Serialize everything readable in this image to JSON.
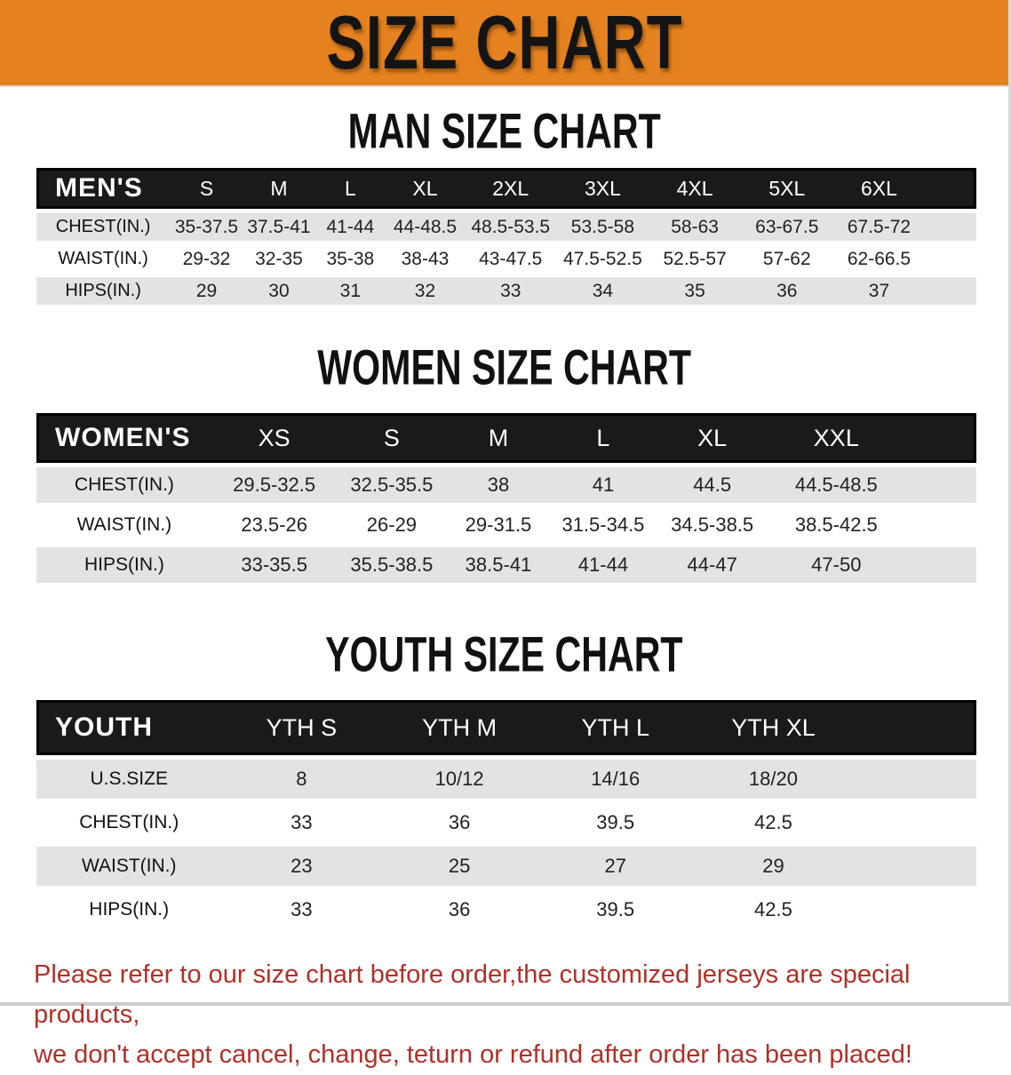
{
  "banner": {
    "title": "SIZE CHART",
    "bg_color": "#e5821f",
    "text_color": "#141414"
  },
  "sections": [
    {
      "id": "men",
      "title": "MAN SIZE CHART",
      "header_label": "MEN'S",
      "columns": [
        "S",
        "M",
        "L",
        "XL",
        "2XL",
        "3XL",
        "4XL",
        "5XL",
        "6XL"
      ],
      "rows": [
        {
          "label": "CHEST(IN.)",
          "values": [
            "35-37.5",
            "37.5-41",
            "41-44",
            "44-48.5",
            "48.5-53.5",
            "53.5-58",
            "58-63",
            "63-67.5",
            "67.5-72"
          ]
        },
        {
          "label": "WAIST(IN.)",
          "values": [
            "29-32",
            "32-35",
            "35-38",
            "38-43",
            "43-47.5",
            "47.5-52.5",
            "52.5-57",
            "57-62",
            "62-66.5"
          ]
        },
        {
          "label": "HIPS(IN.)",
          "values": [
            "29",
            "30",
            "31",
            "32",
            "33",
            "34",
            "35",
            "36",
            "37"
          ]
        }
      ]
    },
    {
      "id": "women",
      "title": "WOMEN SIZE CHART",
      "header_label": "WOMEN'S",
      "columns": [
        "XS",
        "S",
        "M",
        "L",
        "XL",
        "XXL"
      ],
      "rows": [
        {
          "label": "CHEST(IN.)",
          "values": [
            "29.5-32.5",
            "32.5-35.5",
            "38",
            "41",
            "44.5",
            "44.5-48.5"
          ]
        },
        {
          "label": "WAIST(IN.)",
          "values": [
            "23.5-26",
            "26-29",
            "29-31.5",
            "31.5-34.5",
            "34.5-38.5",
            "38.5-42.5"
          ]
        },
        {
          "label": "HIPS(IN.)",
          "values": [
            "33-35.5",
            "35.5-38.5",
            "38.5-41",
            "41-44",
            "44-47",
            "47-50"
          ]
        }
      ]
    },
    {
      "id": "youth",
      "title": "YOUTH SIZE CHART",
      "header_label": "YOUTH",
      "columns": [
        "YTH S",
        "YTH M",
        "YTH L",
        "YTH XL"
      ],
      "rows": [
        {
          "label": "U.S.SIZE",
          "values": [
            "8",
            "10/12",
            "14/16",
            "18/20"
          ]
        },
        {
          "label": "CHEST(IN.)",
          "values": [
            "33",
            "36",
            "39.5",
            "42.5"
          ]
        },
        {
          "label": "WAIST(IN.)",
          "values": [
            "23",
            "25",
            "27",
            "29"
          ]
        },
        {
          "label": "HIPS(IN.)",
          "values": [
            "33",
            "36",
            "39.5",
            "42.5"
          ]
        }
      ]
    }
  ],
  "disclaimer": {
    "line1": "Please refer to our size chart before order,the customized jerseys are special products,",
    "line2": "we don't accept cancel, change, teturn or refund after order has been placed!",
    "color": "#b03028"
  },
  "colors": {
    "banner_bg": "#e5821f",
    "table_header_bg": "#1a1a1a",
    "row_stripe": "#e3e3e3"
  }
}
